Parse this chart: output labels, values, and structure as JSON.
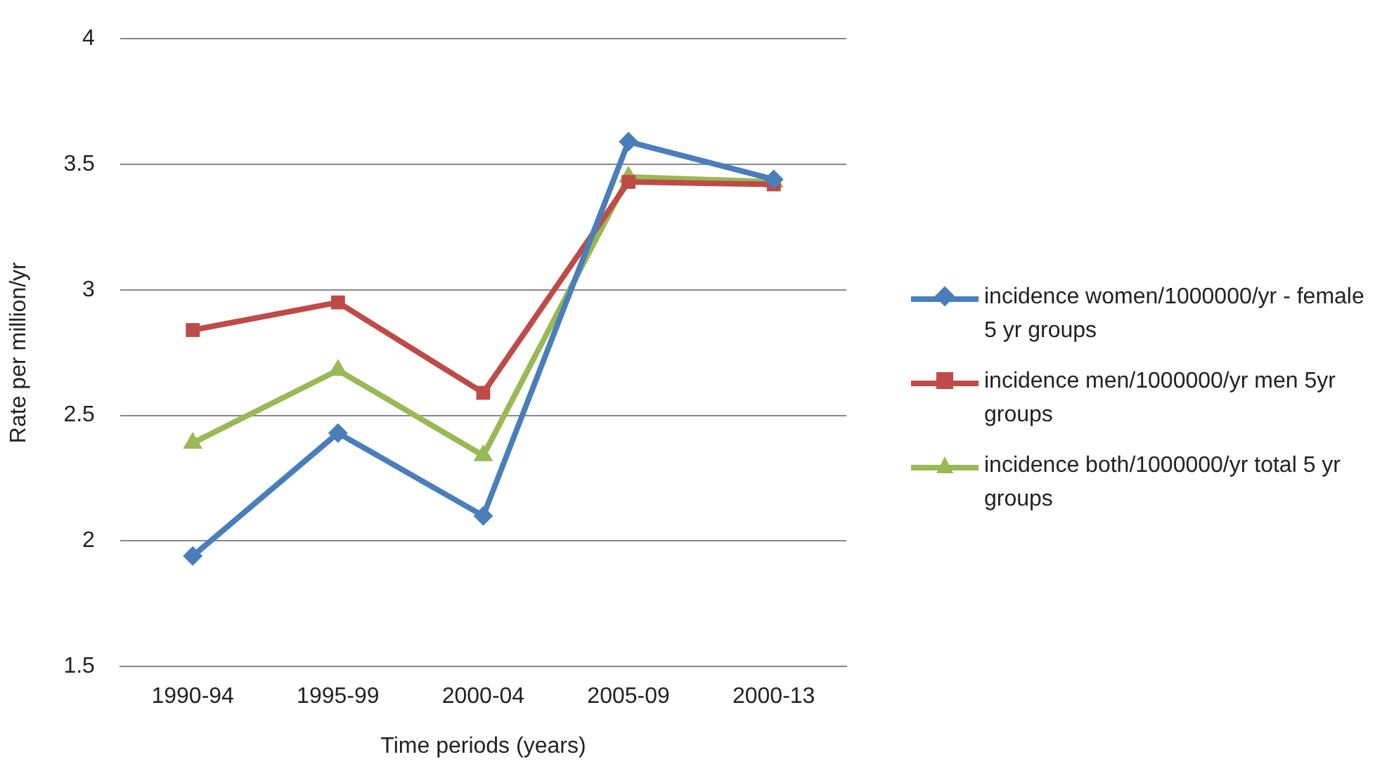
{
  "chart_data": {
    "type": "line",
    "xlabel": "Time periods (years)",
    "ylabel": "Rate per million/yr",
    "categories": [
      "1990-94",
      "1995-99",
      "2000-04",
      "2005-09",
      "2000-13"
    ],
    "series": [
      {
        "name": "incidence women/1000000/yr - female 5 yr groups",
        "color": "#4a7ebb",
        "marker": "diamond",
        "values": [
          1.94,
          2.43,
          2.1,
          3.59,
          3.44
        ]
      },
      {
        "name": "incidence men/1000000/yr men 5yr groups",
        "color": "#be4b48",
        "marker": "square",
        "values": [
          2.84,
          2.95,
          2.59,
          3.43,
          3.42
        ]
      },
      {
        "name": "incidence both/1000000/yr total 5 yr groups",
        "color": "#98b954",
        "marker": "triangle",
        "values": [
          2.39,
          2.68,
          2.34,
          3.45,
          3.43
        ]
      }
    ],
    "ylim": [
      1.5,
      4
    ],
    "yticks": [
      1.5,
      2,
      2.5,
      3,
      3.5,
      4
    ],
    "grid": "y",
    "legend": "right"
  }
}
